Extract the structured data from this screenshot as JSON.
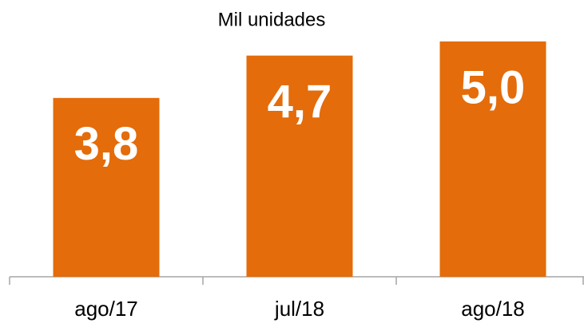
{
  "chart_data": {
    "type": "bar",
    "title": "Mil unidades",
    "categories": [
      "ago/17",
      "jul/18",
      "ago/18"
    ],
    "values": [
      3.8,
      4.7,
      5.0
    ],
    "value_labels": [
      "3,8",
      "4,7",
      "5,0"
    ],
    "color": "#e46c0a"
  }
}
